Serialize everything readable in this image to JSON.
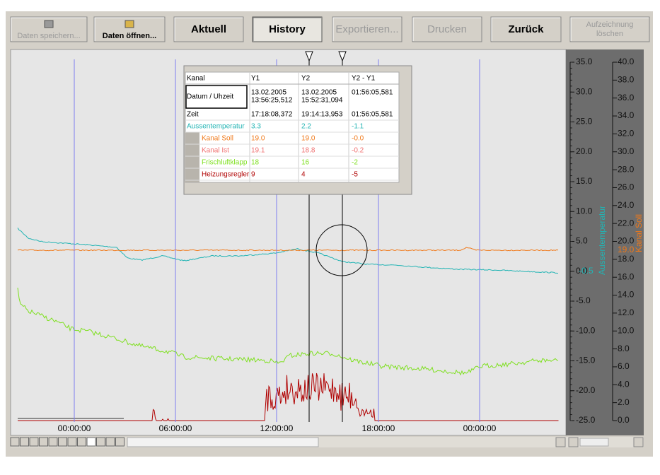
{
  "toolbar": {
    "buttons": [
      {
        "label": "Daten speichern...",
        "enabled": false
      },
      {
        "label": "Daten öffnen...",
        "enabled": true
      },
      {
        "label": "Aktuell",
        "enabled": true
      },
      {
        "label": "History",
        "enabled": true,
        "pressed": true
      },
      {
        "label": "Exportieren...",
        "enabled": false
      },
      {
        "label": "Drucken",
        "enabled": false
      },
      {
        "label": "Zurück",
        "enabled": true
      },
      {
        "label": "Aufzeichnung löschen",
        "enabled": false
      }
    ]
  },
  "table": {
    "header": [
      "Kanal",
      "Y1",
      "Y2",
      "Y2 - Y1"
    ],
    "rows": [
      {
        "cells": [
          "Datum / Uhzeit",
          [
            "13.02.2005",
            "13:56:25,512"
          ],
          [
            "13.02.2005",
            "15:52:31,094"
          ],
          "01:56:05,581"
        ],
        "color": "#000000"
      },
      {
        "cells": [
          "Zeit",
          "17:18:08,372",
          "19:14:13,953",
          "01:56:05,581"
        ],
        "color": "#000000"
      },
      {
        "cells": [
          "Aussentemperatur",
          "3.3",
          "2.2",
          "-1.1"
        ],
        "color": "#22b4b4"
      },
      {
        "cells": [
          "Kanal Soll",
          "19.0",
          "19.0",
          "-0.0"
        ],
        "color": "#f07818"
      },
      {
        "cells": [
          "Kanal Ist",
          "19.1",
          "18.8",
          "-0.2"
        ],
        "color": "#f07070"
      },
      {
        "cells": [
          "Frischluftklapp",
          "18",
          "16",
          "-2"
        ],
        "color": "#7ee01e"
      },
      {
        "cells": [
          "Heizungsregler",
          "9",
          "4",
          "-5"
        ],
        "color": "#b00000"
      }
    ]
  },
  "plot": {
    "time_labels": [
      "00:00:00",
      "06:00:00",
      "12:00:00",
      "18:00:00",
      "00:00:00"
    ]
  },
  "axes": {
    "left": {
      "ticks": [
        "35.0",
        "30.0",
        "25.0",
        "20.0",
        "15.0",
        "10.0",
        "5.0",
        "0.0",
        "-5.0",
        "-10.0",
        "-15.0",
        "-20.0",
        "-25.0"
      ],
      "marker": "-0.5",
      "title": "Aussentemperatur"
    },
    "right": {
      "ticks": [
        "40.0",
        "38.0",
        "36.0",
        "34.0",
        "32.0",
        "30.0",
        "28.0",
        "26.0",
        "24.0",
        "22.0",
        "20.0",
        "18.0",
        "16.0",
        "14.0",
        "12.0",
        "10.0",
        "8.0",
        "6.0",
        "4.0",
        "2.0",
        "0.0"
      ],
      "marker": "19.0",
      "title": "Kanal Soll"
    }
  }
}
